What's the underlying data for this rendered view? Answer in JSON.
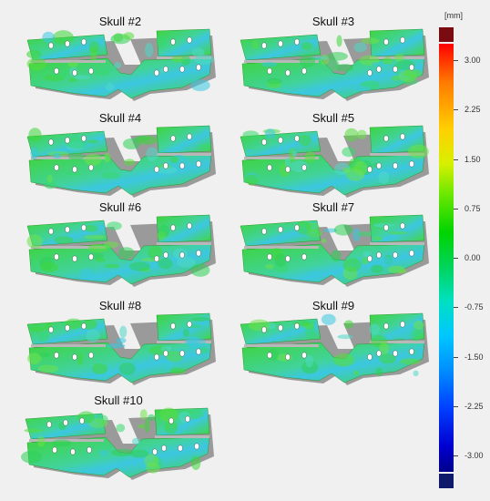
{
  "panels": [
    {
      "label": "Skull #2"
    },
    {
      "label": "Skull #3"
    },
    {
      "label": "Skull #4"
    },
    {
      "label": "Skull #5"
    },
    {
      "label": "Skull #6"
    },
    {
      "label": "Skull #7"
    },
    {
      "label": "Skull #8"
    },
    {
      "label": "Skull #9"
    },
    {
      "label": "Skull #10"
    }
  ],
  "colorbar": {
    "unit": "[mm]",
    "ticks": [
      "3.00",
      "2.25",
      "1.50",
      "0.75",
      "0.00",
      "-0.75",
      "-1.50",
      "-2.25",
      "-3.00"
    ],
    "colors": {
      "max_cap": "#7a0b10",
      "min_cap": "#0f1a6b"
    }
  }
}
